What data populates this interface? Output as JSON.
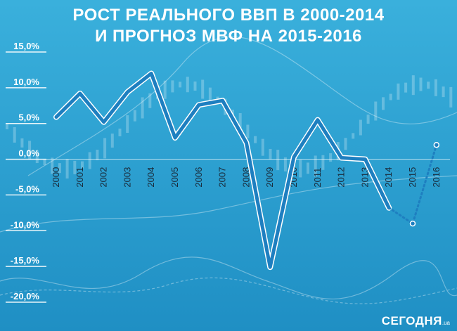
{
  "title": {
    "line1": "РОСТ РЕАЛЬНОГО ВВП В 2000-2014",
    "line2": "И ПРОГНОЗ МВФ НА 2015-2016"
  },
  "logo": {
    "name": "СЕГОДНЯ",
    "domain": ".ua"
  },
  "colors": {
    "background": "#2a9fd0",
    "line": "#1e7fc0",
    "line_outline": "#ffffff",
    "text": "#ffffff"
  },
  "chart_data": {
    "type": "line",
    "title": "РОСТ РЕАЛЬНОГО ВВП В 2000-2014 И ПРОГНОЗ МВФ НА 2015-2016",
    "xlabel": "",
    "ylabel": "",
    "ylim": [
      -20,
      15
    ],
    "yticks": [
      15,
      10,
      5,
      0,
      -5,
      -10,
      -15,
      -20
    ],
    "ytick_labels": [
      "15,0%",
      "10,0%",
      "5,0%",
      "0,0%",
      "-5,0%",
      "-10,0%",
      "-15,0%",
      "-20,0%"
    ],
    "categories": [
      "2000",
      "2001",
      "2002",
      "2003",
      "2004",
      "2005",
      "2006",
      "2007",
      "2008",
      "2009",
      "2010",
      "2011",
      "2012",
      "2013",
      "2014",
      "2015",
      "2016"
    ],
    "series": [
      {
        "style": "solid",
        "x": [
          "2000",
          "2001",
          "2002",
          "2003",
          "2004",
          "2005",
          "2006",
          "2007",
          "2008",
          "2009",
          "2010",
          "2011",
          "2012",
          "2013",
          "2014"
        ],
        "values": [
          5.9,
          9.2,
          5.2,
          9.4,
          12.0,
          3.0,
          7.6,
          8.2,
          2.3,
          -15.1,
          0.3,
          5.5,
          0.2,
          0.0,
          -6.8
        ]
      },
      {
        "style": "dotted",
        "x": [
          "2014",
          "2015",
          "2016"
        ],
        "values": [
          -6.8,
          -9.0,
          2.0
        ]
      }
    ],
    "grid": false,
    "legend": "none"
  }
}
